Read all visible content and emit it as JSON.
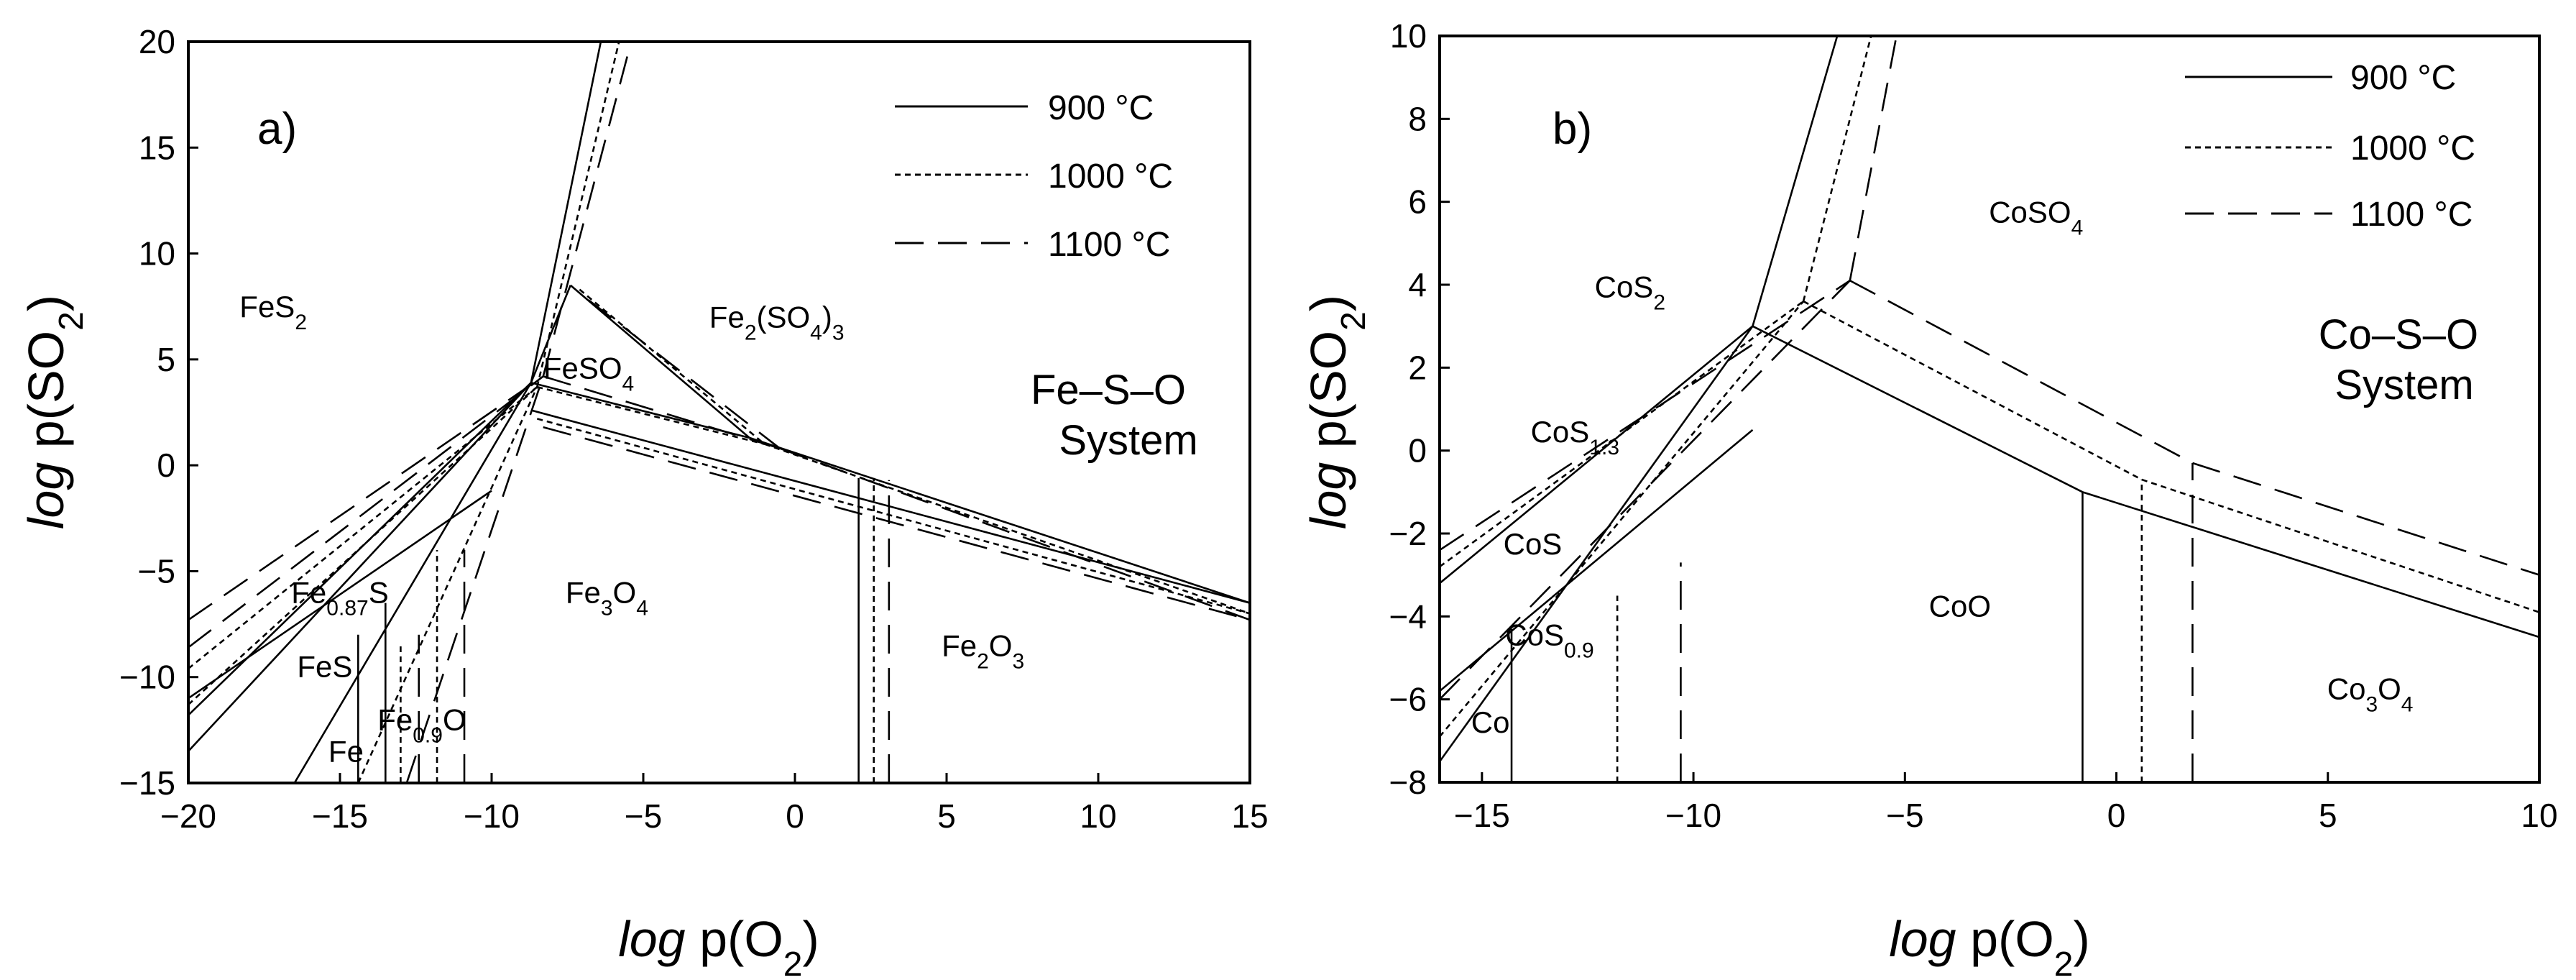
{
  "figure": {
    "panels": [
      {
        "panel_label": "a)",
        "system_name": [
          "Fe–S–O",
          "System"
        ],
        "xlabel": {
          "italic": "log",
          "base": " p(O",
          "sub": "2",
          "tail": ")"
        },
        "ylabel": {
          "italic": "log",
          "base": " p(SO",
          "sub": "2",
          "tail": ")"
        }
      },
      {
        "panel_label": "b)",
        "system_name": [
          "Co–S–O",
          "System"
        ],
        "xlabel": {
          "italic": "log",
          "base": " p(O",
          "sub": "2",
          "tail": ")"
        },
        "ylabel": {
          "italic": "log",
          "base": " p(SO",
          "sub": "2",
          "tail": ")"
        }
      }
    ],
    "legend": [
      {
        "label": "900 °C",
        "dash": "none"
      },
      {
        "label": "1000 °C",
        "dash": "8,6"
      },
      {
        "label": "1100 °C",
        "dash": "40,20"
      }
    ]
  },
  "chart_data": [
    {
      "type": "line",
      "title": "a)",
      "xlabel": "log p(O2)",
      "ylabel": "log p(SO2)",
      "xlim": [
        -20,
        15
      ],
      "ylim": [
        -15,
        20
      ],
      "xticks": [
        -20,
        -15,
        -10,
        -5,
        0,
        5,
        10,
        15
      ],
      "yticks": [
        -15,
        -10,
        -5,
        0,
        5,
        10,
        15,
        20
      ],
      "legend_position": "top-right",
      "grid": false,
      "regions": [
        {
          "label": "FeS",
          "sub": "2",
          "tail": "",
          "x": -17.2,
          "y": 7
        },
        {
          "label": "FeSO",
          "sub": "4",
          "tail": "",
          "x": -6.8,
          "y": 4.1
        },
        {
          "label": "Fe",
          "sub": "2",
          "tail": "(SO4)3",
          "x": -0.6,
          "y": 6.5
        },
        {
          "label": "Fe",
          "sub": "0.87",
          "tail": "S",
          "x": -15,
          "y": -6.5
        },
        {
          "label": "Fe",
          "sub": "3",
          "tail": "O4",
          "x": -6.2,
          "y": -6.5
        },
        {
          "label": "FeS",
          "sub": "",
          "tail": "",
          "x": -15.5,
          "y": -10
        },
        {
          "label": "Fe",
          "sub": "0.9",
          "tail": "O",
          "x": -12.3,
          "y": -12.5
        },
        {
          "label": "Fe",
          "sub": "",
          "tail": "",
          "x": -14.8,
          "y": -14
        },
        {
          "label": "Fe",
          "sub": "2",
          "tail": "O3",
          "x": 6.2,
          "y": -9
        }
      ],
      "series": [
        {
          "name": "900 °C",
          "segments": [
            [
              [
                -20,
                -13.5
              ],
              [
                -8.7,
                3.9
              ]
            ],
            [
              [
                -20,
                -11.8
              ],
              [
                -8.7,
                3.9
              ]
            ],
            [
              [
                -8.7,
                3.9
              ],
              [
                -6.4,
                20
              ]
            ],
            [
              [
                -8.7,
                3.9
              ],
              [
                -1.5,
                1.3
              ]
            ],
            [
              [
                -1.5,
                1.3
              ],
              [
                15,
                -6.5
              ]
            ],
            [
              [
                -8.7,
                2.6
              ],
              [
                15,
                -6.5
              ]
            ],
            [
              [
                -7.4,
                8.5
              ],
              [
                -1.5,
                1.3
              ]
            ],
            [
              [
                -8.7,
                3.9
              ],
              [
                -7.4,
                8.5
              ]
            ],
            [
              [
                -16.5,
                -15
              ],
              [
                -8.7,
                3.9
              ]
            ],
            [
              [
                -14.4,
                -15
              ],
              [
                -14.4,
                -8
              ]
            ],
            [
              [
                -13.5,
                -15
              ],
              [
                -13.5,
                -6.5
              ]
            ],
            [
              [
                2.1,
                -15
              ],
              [
                2.1,
                -0.6
              ]
            ],
            [
              [
                -20,
                -11
              ],
              [
                -10,
                -1.2
              ]
            ]
          ]
        },
        {
          "name": "1000 °C",
          "segments": [
            [
              [
                -20,
                -11.3
              ],
              [
                -8.5,
                3.7
              ]
            ],
            [
              [
                -20,
                -9.6
              ],
              [
                -8.5,
                3.7
              ]
            ],
            [
              [
                -8.5,
                3.7
              ],
              [
                -5.8,
                20
              ]
            ],
            [
              [
                -8.5,
                3.7
              ],
              [
                -1,
                1
              ]
            ],
            [
              [
                -1,
                1
              ],
              [
                15,
                -7
              ]
            ],
            [
              [
                -8.5,
                2.2
              ],
              [
                15,
                -7
              ]
            ],
            [
              [
                -7.1,
                8.3
              ],
              [
                -1,
                1
              ]
            ],
            [
              [
                -14.4,
                -15
              ],
              [
                -8.5,
                3.7
              ]
            ],
            [
              [
                -13,
                -15
              ],
              [
                -13,
                -8.5
              ]
            ],
            [
              [
                -11.8,
                -15
              ],
              [
                -11.8,
                -4
              ]
            ],
            [
              [
                2.6,
                -15
              ],
              [
                2.6,
                -0.6
              ]
            ]
          ]
        },
        {
          "name": "1100 °C",
          "segments": [
            [
              [
                -20,
                -7.3
              ],
              [
                -8.3,
                4.2
              ]
            ],
            [
              [
                -20,
                -8.6
              ],
              [
                -8.3,
                4.2
              ]
            ],
            [
              [
                -8.3,
                4.2
              ],
              [
                -5.4,
                20
              ]
            ],
            [
              [
                -8.3,
                4.2
              ],
              [
                -0.5,
                0.8
              ]
            ],
            [
              [
                -0.5,
                0.8
              ],
              [
                15,
                -7.3
              ]
            ],
            [
              [
                -8.3,
                1.8
              ],
              [
                15,
                -7.3
              ]
            ],
            [
              [
                -6.8,
                7.8
              ],
              [
                -0.5,
                0.8
              ]
            ],
            [
              [
                -12.8,
                -15
              ],
              [
                -8.3,
                4.2
              ]
            ],
            [
              [
                -12.4,
                -15
              ],
              [
                -12.4,
                -8
              ]
            ],
            [
              [
                -10.9,
                -15
              ],
              [
                -10.9,
                -4
              ]
            ],
            [
              [
                3.1,
                -15
              ],
              [
                3.1,
                -0.7
              ]
            ]
          ]
        }
      ]
    },
    {
      "type": "line",
      "title": "b)",
      "xlabel": "log p(O2)",
      "ylabel": "log p(SO2)",
      "xlim": [
        -16,
        10
      ],
      "ylim": [
        -8,
        10
      ],
      "xticks": [
        -15,
        -10,
        -5,
        0,
        5,
        10
      ],
      "yticks": [
        -8,
        -6,
        -4,
        -2,
        0,
        2,
        4,
        6,
        8,
        10
      ],
      "legend_position": "top-right",
      "grid": false,
      "regions": [
        {
          "label": "CoSO",
          "sub": "4",
          "tail": "",
          "x": -1.9,
          "y": 5.5
        },
        {
          "label": "CoS",
          "sub": "2",
          "tail": "",
          "x": -11.5,
          "y": 3.7
        },
        {
          "label": "CoS",
          "sub": "1.3",
          "tail": "",
          "x": -12.8,
          "y": 0.2
        },
        {
          "label": "CoS",
          "sub": "",
          "tail": "",
          "x": -13.8,
          "y": -2.5
        },
        {
          "label": "CoS",
          "sub": "0.9",
          "tail": "",
          "x": -13.4,
          "y": -4.7
        },
        {
          "label": "CoO",
          "sub": "",
          "tail": "",
          "x": -3.7,
          "y": -4
        },
        {
          "label": "Co",
          "sub": "",
          "tail": "",
          "x": -14.8,
          "y": -6.8
        },
        {
          "label": "Co",
          "sub": "3",
          "tail": "O4",
          "x": 6,
          "y": -6
        }
      ],
      "series": [
        {
          "name": "900 °C",
          "segments": [
            [
              [
                -16,
                -3.2
              ],
              [
                -8.6,
                3.0
              ]
            ],
            [
              [
                -8.6,
                3.0
              ],
              [
                -6.6,
                10
              ]
            ],
            [
              [
                -8.6,
                3.0
              ],
              [
                -0.8,
                -1.0
              ]
            ],
            [
              [
                -0.8,
                -1.0
              ],
              [
                10,
                -4.5
              ]
            ],
            [
              [
                -0.8,
                -8
              ],
              [
                -0.8,
                -1.0
              ]
            ],
            [
              [
                -14.3,
                -8
              ],
              [
                -14.3,
                -4.3
              ]
            ],
            [
              [
                -16,
                -7.5
              ],
              [
                -8.6,
                3.0
              ]
            ],
            [
              [
                -16,
                -5.8
              ],
              [
                -8.6,
                0.5
              ]
            ]
          ]
        },
        {
          "name": "1000 °C",
          "segments": [
            [
              [
                -16,
                -2.8
              ],
              [
                -7.4,
                3.6
              ]
            ],
            [
              [
                -7.4,
                3.6
              ],
              [
                -5.8,
                10
              ]
            ],
            [
              [
                -7.4,
                3.6
              ],
              [
                0.6,
                -0.7
              ]
            ],
            [
              [
                0.6,
                -0.7
              ],
              [
                10,
                -3.9
              ]
            ],
            [
              [
                0.6,
                -8
              ],
              [
                0.6,
                -0.7
              ]
            ],
            [
              [
                -11.8,
                -8
              ],
              [
                -11.8,
                -3.5
              ]
            ],
            [
              [
                -16,
                -6.9
              ],
              [
                -7.4,
                3.6
              ]
            ]
          ]
        },
        {
          "name": "1100 °C",
          "segments": [
            [
              [
                -16,
                -2.4
              ],
              [
                -6.3,
                4.1
              ]
            ],
            [
              [
                -6.3,
                4.1
              ],
              [
                -5.2,
                10
              ]
            ],
            [
              [
                -6.3,
                4.1
              ],
              [
                1.8,
                -0.3
              ]
            ],
            [
              [
                1.8,
                -0.3
              ],
              [
                10,
                -3.0
              ]
            ],
            [
              [
                1.8,
                -8
              ],
              [
                1.8,
                -0.3
              ]
            ],
            [
              [
                -10.3,
                -8
              ],
              [
                -10.3,
                -2.7
              ]
            ],
            [
              [
                -16,
                -6.0
              ],
              [
                -6.3,
                4.1
              ]
            ]
          ]
        }
      ]
    }
  ]
}
